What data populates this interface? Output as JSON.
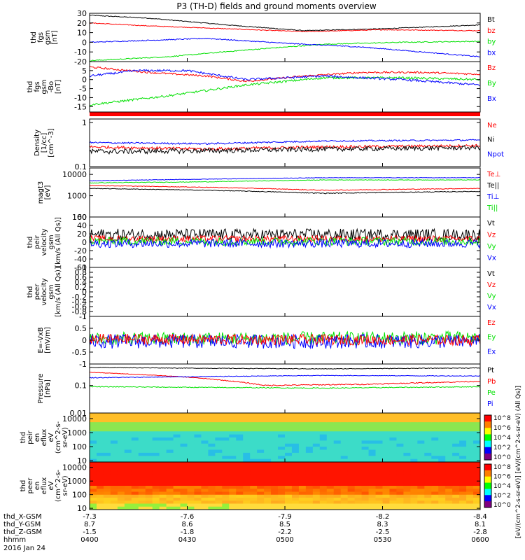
{
  "title": "P3 (TH-D) fields and ground moments overview",
  "date_label": "2016 Jan 24",
  "colors": {
    "black": "#000000",
    "red": "#ff0000",
    "green": "#00e000",
    "blue": "#0000ff"
  },
  "chart_data": [
    {
      "type": "line",
      "id": "p1",
      "ylabel_lines": [
        "thd",
        "fgs",
        "gsm",
        "[nT]"
      ],
      "ylim": [
        -20,
        30
      ],
      "ticks": [
        30,
        20,
        10,
        0,
        -10,
        -20
      ],
      "legend": [
        {
          "name": "Bt",
          "color": "black"
        },
        {
          "name": "bz",
          "color": "red"
        },
        {
          "name": "by",
          "color": "green"
        },
        {
          "name": "bx",
          "color": "blue"
        }
      ],
      "series": [
        {
          "name": "Bt",
          "color": "black",
          "x": [
            0,
            0.15,
            0.35,
            0.55,
            0.75,
            1
          ],
          "y": [
            28,
            25,
            18,
            12,
            14,
            18
          ],
          "noise": 0.4
        },
        {
          "name": "bz",
          "color": "red",
          "x": [
            0,
            0.15,
            0.35,
            0.55,
            0.75,
            1
          ],
          "y": [
            20,
            17,
            14,
            11,
            13,
            12
          ],
          "noise": 0.4
        },
        {
          "name": "by",
          "color": "green",
          "x": [
            0,
            0.2,
            0.4,
            0.6,
            0.8,
            1
          ],
          "y": [
            -19,
            -15,
            -8,
            -2,
            0,
            1
          ],
          "noise": 0.5
        },
        {
          "name": "bx",
          "color": "blue",
          "x": [
            0,
            0.15,
            0.3,
            0.5,
            0.7,
            0.85,
            1
          ],
          "y": [
            0,
            2,
            4,
            -1,
            -5,
            -10,
            -15
          ],
          "noise": 0.5
        }
      ]
    },
    {
      "type": "line",
      "id": "p2",
      "ylabel_lines": [
        "thd",
        "fgs",
        "gsm",
        "-Bo",
        "[nT]"
      ],
      "ylim": [
        -18,
        10
      ],
      "ticks": [
        5,
        0,
        -5,
        -10,
        -15
      ],
      "legend": [
        {
          "name": "Bz",
          "color": "red"
        },
        {
          "name": "By",
          "color": "green"
        },
        {
          "name": "Bx",
          "color": "blue"
        }
      ],
      "series": [
        {
          "name": "Bz",
          "color": "red",
          "x": [
            0,
            0.15,
            0.3,
            0.4,
            0.55,
            0.7,
            0.85,
            1
          ],
          "y": [
            7,
            4,
            2,
            -1,
            2,
            4,
            4,
            3
          ],
          "noise": 0.5
        },
        {
          "name": "By",
          "color": "green",
          "x": [
            0,
            0.2,
            0.4,
            0.6,
            0.8,
            1
          ],
          "y": [
            -14,
            -9,
            -3,
            1,
            1,
            0
          ],
          "noise": 0.6
        },
        {
          "name": "Bx",
          "color": "blue",
          "x": [
            0,
            0.12,
            0.25,
            0.4,
            0.6,
            0.8,
            1
          ],
          "y": [
            2,
            5,
            5,
            0,
            2,
            0,
            -3
          ],
          "noise": 0.6
        }
      ]
    },
    {
      "type": "line",
      "id": "p3",
      "log": true,
      "ylabel_lines": [
        "Density",
        "[1/cc]",
        "[cm^-3]"
      ],
      "ylim": [
        0.1,
        1.2
      ],
      "ticks": [
        1.0,
        0.1
      ],
      "legend": [
        {
          "name": "Ne",
          "color": "red"
        },
        {
          "name": "Ni",
          "color": "black"
        },
        {
          "name": "Npot",
          "color": "blue"
        }
      ],
      "series": [
        {
          "name": "Ne",
          "color": "red",
          "x": [
            0,
            0.3,
            0.6,
            1
          ],
          "y": [
            0.28,
            0.25,
            0.28,
            0.3
          ],
          "noise": 0.02
        },
        {
          "name": "Ni",
          "color": "black",
          "x": [
            0,
            0.3,
            0.6,
            1
          ],
          "y": [
            0.22,
            0.23,
            0.25,
            0.27
          ],
          "noise": 0.03
        },
        {
          "name": "Npot",
          "color": "blue",
          "x": [
            0,
            0.3,
            0.6,
            1
          ],
          "y": [
            0.35,
            0.33,
            0.38,
            0.4
          ],
          "noise": 0.015
        }
      ]
    },
    {
      "type": "line",
      "id": "p4",
      "log": true,
      "ylabel_lines": [
        "magt3",
        "[eV]"
      ],
      "ylim": [
        100,
        20000
      ],
      "ticks": [
        10000,
        1000,
        100
      ],
      "legend": [
        {
          "name": "Te⊥",
          "color": "red"
        },
        {
          "name": "Te||",
          "color": "black"
        },
        {
          "name": "Ti⊥",
          "color": "blue"
        },
        {
          "name": "Ti||",
          "color": "green"
        }
      ],
      "series": [
        {
          "name": "Te⊥",
          "color": "red",
          "x": [
            0,
            0.3,
            0.6,
            1
          ],
          "y": [
            3000,
            2500,
            1800,
            2200
          ],
          "noise": 80
        },
        {
          "name": "Te||",
          "color": "black",
          "x": [
            0,
            0.3,
            0.6,
            1
          ],
          "y": [
            2200,
            1800,
            1300,
            1600
          ],
          "noise": 60
        },
        {
          "name": "Ti⊥",
          "color": "blue",
          "x": [
            0,
            0.3,
            0.6,
            1
          ],
          "y": [
            5000,
            6000,
            7000,
            7000
          ],
          "noise": 150
        },
        {
          "name": "Ti||",
          "color": "green",
          "x": [
            0,
            0.3,
            0.6,
            1
          ],
          "y": [
            4000,
            4500,
            5500,
            5500
          ],
          "noise": 150
        }
      ]
    },
    {
      "type": "line",
      "id": "p5",
      "ylabel_lines": [
        "thd",
        "peir",
        "velocity",
        "gsm",
        "[km/s (All Qs)]"
      ],
      "ylim": [
        -60,
        60
      ],
      "ticks": [
        60,
        40,
        20,
        0,
        -20,
        -40,
        -60
      ],
      "legend": [
        {
          "name": "Vt",
          "color": "black"
        },
        {
          "name": "Vz",
          "color": "red"
        },
        {
          "name": "Vy",
          "color": "green"
        },
        {
          "name": "Vx",
          "color": "blue"
        }
      ],
      "series": [
        {
          "name": "Vt",
          "color": "black",
          "x": [
            0,
            1
          ],
          "y": [
            18,
            18
          ],
          "noise": 14
        },
        {
          "name": "Vz",
          "color": "red",
          "x": [
            0,
            1
          ],
          "y": [
            8,
            8
          ],
          "noise": 8
        },
        {
          "name": "Vy",
          "color": "green",
          "x": [
            0,
            1
          ],
          "y": [
            2,
            2
          ],
          "noise": 10
        },
        {
          "name": "Vx",
          "color": "blue",
          "x": [
            0,
            1
          ],
          "y": [
            -3,
            -3
          ],
          "noise": 10
        }
      ]
    },
    {
      "type": "line",
      "id": "p6",
      "ylabel_lines": [
        "thd",
        "peer",
        "velocity",
        "gsm",
        "[km/s (All Qs)]"
      ],
      "ylim": [
        -1,
        1
      ],
      "ticks": [
        1.0,
        0.8,
        0.6,
        0.4,
        0.2,
        0.0,
        -0.2,
        -0.4,
        -0.6,
        -0.8,
        -1.0
      ],
      "legend": [
        {
          "name": "Vt",
          "color": "black"
        },
        {
          "name": "Vz",
          "color": "red"
        },
        {
          "name": "Vy",
          "color": "green"
        },
        {
          "name": "Vx",
          "color": "blue"
        }
      ],
      "series": []
    },
    {
      "type": "line",
      "id": "p7",
      "ylabel_lines": [
        "E=-VxB",
        "[mV/m]"
      ],
      "ylim": [
        -1.0,
        1.0
      ],
      "ticks": [
        1.0,
        0.5,
        0.0,
        -0.5,
        -1.0
      ],
      "legend": [
        {
          "name": "Ez",
          "color": "red"
        },
        {
          "name": "Ey",
          "color": "green"
        },
        {
          "name": "Ex",
          "color": "blue"
        }
      ],
      "series": [
        {
          "name": "Ey",
          "color": "green",
          "x": [
            0,
            1
          ],
          "y": [
            0.05,
            0.1
          ],
          "noise": 0.28
        },
        {
          "name": "Ex",
          "color": "blue",
          "x": [
            0,
            1
          ],
          "y": [
            -0.05,
            -0.05
          ],
          "noise": 0.3
        },
        {
          "name": "Ez",
          "color": "red",
          "x": [
            0,
            1
          ],
          "y": [
            0.05,
            0.0
          ],
          "noise": 0.22
        }
      ]
    },
    {
      "type": "line",
      "id": "p8",
      "log": true,
      "ylabel_lines": [
        "Pressure",
        "[nPa]"
      ],
      "ylim": [
        0.01,
        0.6
      ],
      "ticks": [
        0.1,
        0.01
      ],
      "legend": [
        {
          "name": "Pt",
          "color": "black"
        },
        {
          "name": "Pb",
          "color": "red"
        },
        {
          "name": "Pe",
          "color": "green"
        },
        {
          "name": "Pi",
          "color": "blue"
        }
      ],
      "series": [
        {
          "name": "Pt",
          "color": "black",
          "x": [
            0,
            0.3,
            0.6,
            1
          ],
          "y": [
            0.45,
            0.42,
            0.4,
            0.43
          ],
          "noise": 0.01
        },
        {
          "name": "Pb",
          "color": "red",
          "x": [
            0,
            0.25,
            0.45,
            0.7,
            1
          ],
          "y": [
            0.3,
            0.2,
            0.1,
            0.11,
            0.14
          ],
          "noise": 0.005
        },
        {
          "name": "Pe",
          "color": "green",
          "x": [
            0,
            0.3,
            0.6,
            1
          ],
          "y": [
            0.09,
            0.085,
            0.08,
            0.09
          ],
          "noise": 0.003
        },
        {
          "name": "Pi",
          "color": "blue",
          "x": [
            0,
            0.3,
            0.6,
            1
          ],
          "y": [
            0.19,
            0.21,
            0.23,
            0.22
          ],
          "noise": 0.006
        }
      ]
    },
    {
      "type": "heatmap",
      "id": "p9",
      "log": true,
      "ylabel_lines": [
        "thd",
        "peir",
        "en",
        "eflux",
        "eV",
        "(cm^2-s-",
        "sr-eV)"
      ],
      "ylim": [
        8,
        25000
      ],
      "ticks": [
        10000,
        1000,
        100,
        10
      ],
      "cbar_ticks": [
        "10^8",
        "10^6",
        "10^4",
        "10^2",
        "10^0"
      ]
    },
    {
      "type": "heatmap",
      "id": "p10",
      "log": true,
      "ylabel_lines": [
        "thd",
        "peer",
        "en",
        "eflux",
        "eV",
        "(cm^2-s-",
        "sr-eV)"
      ],
      "ylim": [
        8,
        25000
      ],
      "ticks": [
        10000,
        1000,
        100,
        10
      ],
      "cbar_ticks": [
        "10^8",
        "10^6",
        "10^4",
        "10^2",
        "10^0"
      ]
    }
  ],
  "colorbar_label": "[eV/(cm^2-s-sr-eV)] [eV/(cm^2-s-sr-eV) (All Qs)]",
  "x_axis": {
    "tick_times": [
      "0400",
      "0430",
      "0500",
      "0530",
      "0600"
    ],
    "rows": [
      {
        "label": "thd_X-GSM",
        "values": [
          "-7.3",
          "-7.6",
          "-7.9",
          "-8.2",
          "-8.4"
        ]
      },
      {
        "label": "thd_Y-GSM",
        "values": [
          "8.7",
          "8.6",
          "8.5",
          "8.3",
          "8.1"
        ]
      },
      {
        "label": "thd_Z-GSM",
        "values": [
          "-1.5",
          "-1.8",
          "-2.2",
          "-2.5",
          "-2.8"
        ]
      },
      {
        "label": "hhmm",
        "values": [
          "0400",
          "0430",
          "0500",
          "0530",
          "0600"
        ]
      }
    ]
  }
}
